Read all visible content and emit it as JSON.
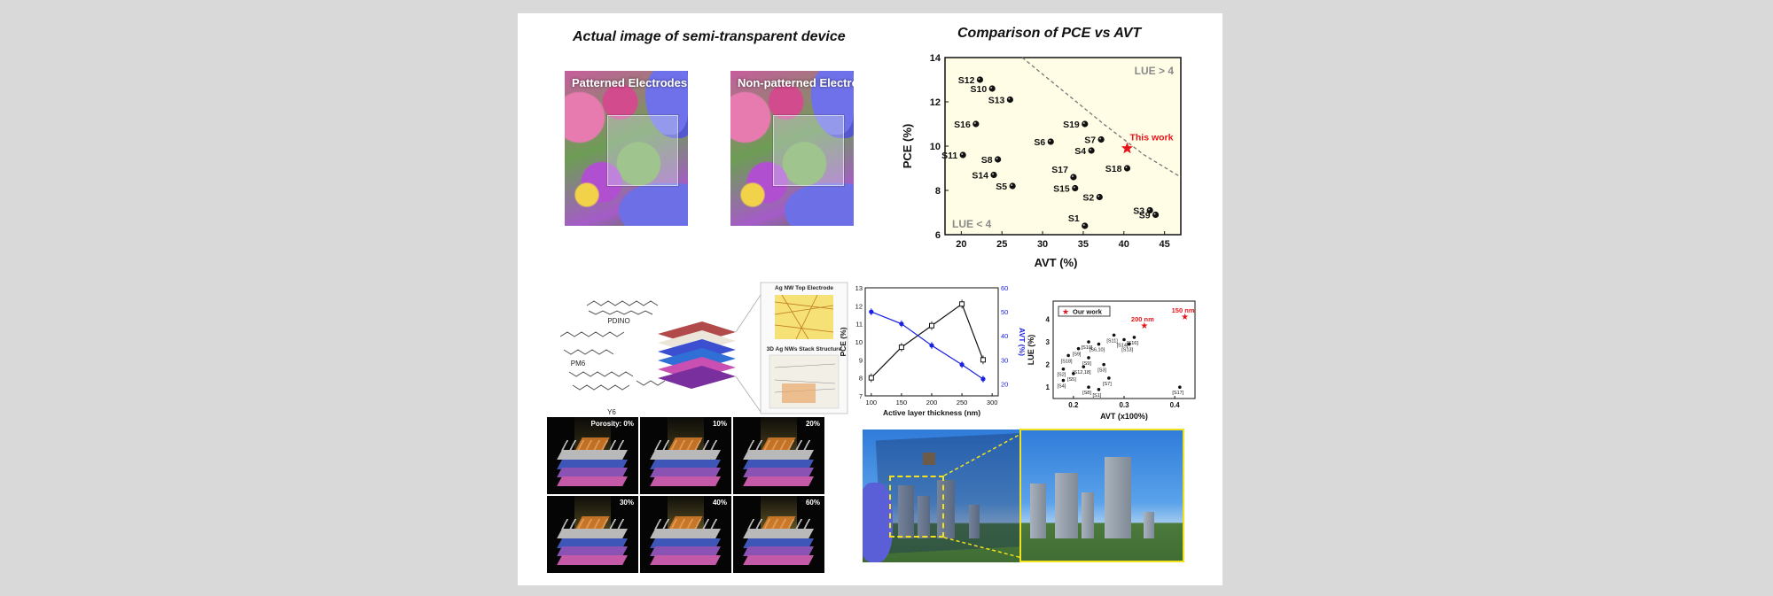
{
  "headings": {
    "left": "Actual image of semi-transparent device",
    "right": "Comparison of PCE vs AVT"
  },
  "photos": {
    "patterned": "Patterned Electrodes",
    "nonpatterned": "Non-patterned Electrode"
  },
  "molecules": {
    "pdino": "PDINO",
    "pm6": "PM6",
    "y6": "Y6"
  },
  "stack_labels": {
    "top": "Ag NW Top Electrode",
    "stack": "3D Ag NWs Stack Structure"
  },
  "porosity": [
    "Porosity: 0%",
    "10%",
    "20%",
    "30%",
    "40%",
    "60%"
  ],
  "colors": {
    "chart_bg": "#fffde6",
    "star": "#e8141c",
    "blue_series": "#1b22e0",
    "highlight": "#f2e21d"
  },
  "chart_data": [
    {
      "type": "scatter",
      "title": "Comparison of PCE vs AVT",
      "xlabel": "AVT (%)",
      "ylabel": "PCE (%)",
      "xlim": [
        18,
        47
      ],
      "ylim": [
        6,
        14
      ],
      "xticks": [
        20,
        25,
        30,
        35,
        40,
        45
      ],
      "yticks": [
        6,
        8,
        10,
        12,
        14
      ],
      "region_labels": [
        "LUE > 4",
        "LUE < 4"
      ],
      "points": [
        {
          "label": "S12",
          "x": 22.3,
          "y": 13.0
        },
        {
          "label": "S10",
          "x": 23.8,
          "y": 12.6
        },
        {
          "label": "S13",
          "x": 26.0,
          "y": 12.1
        },
        {
          "label": "S16",
          "x": 21.8,
          "y": 11.0
        },
        {
          "label": "S19",
          "x": 35.2,
          "y": 11.0
        },
        {
          "label": "S6",
          "x": 31.0,
          "y": 10.2
        },
        {
          "label": "S4",
          "x": 36.0,
          "y": 9.8
        },
        {
          "label": "S7",
          "x": 37.2,
          "y": 10.3
        },
        {
          "label": "S11",
          "x": 20.2,
          "y": 9.6
        },
        {
          "label": "S8",
          "x": 24.5,
          "y": 9.4
        },
        {
          "label": "S17",
          "x": 33.8,
          "y": 8.6
        },
        {
          "label": "S18",
          "x": 40.4,
          "y": 9.0
        },
        {
          "label": "S14",
          "x": 24.0,
          "y": 8.7
        },
        {
          "label": "S15",
          "x": 34.0,
          "y": 8.1
        },
        {
          "label": "S2",
          "x": 37.0,
          "y": 7.7
        },
        {
          "label": "S5",
          "x": 26.3,
          "y": 8.2
        },
        {
          "label": "S3",
          "x": 43.2,
          "y": 7.1
        },
        {
          "label": "S9",
          "x": 43.9,
          "y": 6.9
        },
        {
          "label": "S1",
          "x": 35.2,
          "y": 6.4
        }
      ],
      "highlight": {
        "label": "This work",
        "x": 40.4,
        "y": 9.9
      },
      "boundary": [
        {
          "x": 27.5,
          "y": 14.0
        },
        {
          "x": 32.5,
          "y": 12.5
        },
        {
          "x": 37.5,
          "y": 11.0
        },
        {
          "x": 42.5,
          "y": 9.6
        },
        {
          "x": 47.0,
          "y": 8.6
        }
      ]
    },
    {
      "type": "line",
      "xlabel": "Active layer thickness (nm)",
      "ylabel": "PCE (%)",
      "ylabel2": "AVT (%)",
      "xlim": [
        90,
        310
      ],
      "ylim": [
        7,
        13
      ],
      "ylim2": [
        15,
        60
      ],
      "xticks": [
        100,
        150,
        200,
        250,
        300
      ],
      "yticks": [
        7,
        8,
        9,
        10,
        11,
        12,
        13
      ],
      "yticks2": [
        20,
        30,
        40,
        50,
        60
      ],
      "series": [
        {
          "axis": "left",
          "x": [
            100,
            150,
            200,
            250,
            285
          ],
          "values": [
            8.0,
            9.7,
            10.9,
            12.1,
            9.0
          ]
        },
        {
          "axis": "right",
          "x": [
            100,
            150,
            200,
            250,
            285
          ],
          "values": [
            50,
            45,
            36,
            28,
            22
          ]
        }
      ]
    },
    {
      "type": "scatter",
      "xlabel": "AVT (x100%)",
      "ylabel": "LUE (%)",
      "xlim": [
        0.16,
        0.44
      ],
      "ylim": [
        0.5,
        4.8
      ],
      "xticks": [
        0.2,
        0.3,
        0.4
      ],
      "yticks": [
        1,
        2,
        3,
        4
      ],
      "legend": "Our work",
      "legend_position": "top-left",
      "points": [
        {
          "label": "[S10]",
          "x": 0.23,
          "y": 3.0
        },
        {
          "label": "[S9]",
          "x": 0.21,
          "y": 2.7
        },
        {
          "label": "[S11]",
          "x": 0.28,
          "y": 3.3
        },
        {
          "label": "[S14]",
          "x": 0.3,
          "y": 3.1
        },
        {
          "label": "[S6,10]",
          "x": 0.25,
          "y": 2.9
        },
        {
          "label": "[S16]",
          "x": 0.32,
          "y": 3.2
        },
        {
          "label": "[S13]",
          "x": 0.31,
          "y": 2.9
        },
        {
          "label": "[S18]",
          "x": 0.19,
          "y": 2.4
        },
        {
          "label": "[S9]",
          "x": 0.23,
          "y": 2.3
        },
        {
          "label": "[S2]",
          "x": 0.18,
          "y": 1.8
        },
        {
          "label": "[S3]",
          "x": 0.26,
          "y": 2.0
        },
        {
          "label": "[S12,18]",
          "x": 0.22,
          "y": 1.9
        },
        {
          "label": "[S5]",
          "x": 0.2,
          "y": 1.6
        },
        {
          "label": "[S4]",
          "x": 0.18,
          "y": 1.3
        },
        {
          "label": "[S7]",
          "x": 0.27,
          "y": 1.4
        },
        {
          "label": "[S8]",
          "x": 0.23,
          "y": 1.0
        },
        {
          "label": "[S1]",
          "x": 0.25,
          "y": 0.9
        },
        {
          "label": "[S17]",
          "x": 0.41,
          "y": 1.0
        }
      ],
      "highlights": [
        {
          "label": "200 nm",
          "x": 0.34,
          "y": 3.7
        },
        {
          "label": "150 nm",
          "x": 0.42,
          "y": 4.1
        }
      ]
    }
  ]
}
